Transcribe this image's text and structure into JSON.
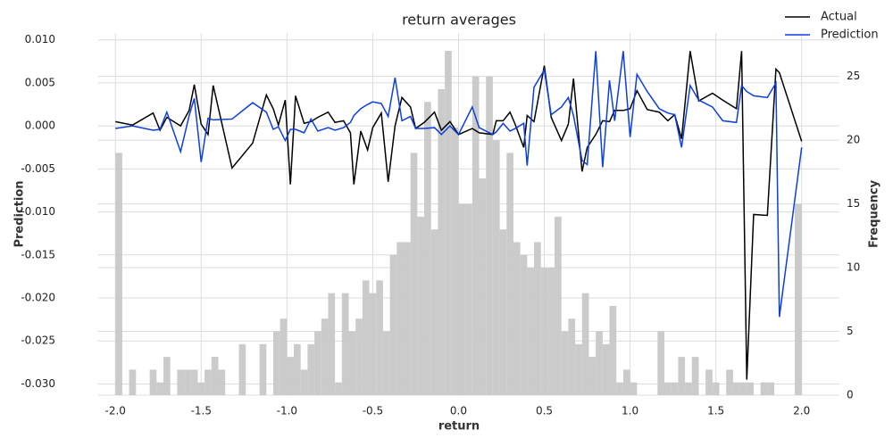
{
  "chart_data": {
    "type": "line",
    "title": "return averages",
    "xlabel": "return",
    "ylabel": "Prediction",
    "y2label": "Frequency",
    "x": [
      -2.0,
      -1.9,
      -1.78,
      -1.74,
      -1.7,
      -1.62,
      -1.57,
      -1.54,
      -1.5,
      -1.46,
      -1.43,
      -1.32,
      -1.2,
      -1.12,
      -1.08,
      -1.05,
      -1.01,
      -0.98,
      -0.95,
      -0.9,
      -0.86,
      -0.82,
      -0.76,
      -0.72,
      -0.67,
      -0.63,
      -0.61,
      -0.57,
      -0.53,
      -0.5,
      -0.45,
      -0.41,
      -0.37,
      -0.33,
      -0.28,
      -0.25,
      -0.2,
      -0.14,
      -0.1,
      -0.05,
      0.0,
      0.08,
      0.12,
      0.2,
      0.22,
      0.26,
      0.3,
      0.33,
      0.38,
      0.4,
      0.44,
      0.5,
      0.54,
      0.6,
      0.64,
      0.67,
      0.72,
      0.75,
      0.8,
      0.84,
      0.88,
      0.91,
      0.96,
      1.0,
      1.04,
      1.1,
      1.17,
      1.22,
      1.26,
      1.3,
      1.35,
      1.4,
      1.48,
      1.54,
      1.62,
      1.65,
      1.68,
      1.72,
      1.8,
      1.85,
      1.87,
      2.0
    ],
    "series": [
      {
        "name": "Actual",
        "color": "#000000",
        "values": [
          0.0005,
          0.0001,
          0.0015,
          -0.0005,
          0.001,
          0.0,
          0.0018,
          0.0048,
          0.0002,
          -0.001,
          0.0047,
          -0.0049,
          -0.002,
          0.0036,
          0.002,
          0.0001,
          0.003,
          -0.0068,
          0.0035,
          0.0003,
          0.0005,
          0.001,
          0.0016,
          0.0004,
          0.0006,
          -0.0008,
          -0.0068,
          -0.0006,
          -0.0028,
          -0.0002,
          0.0015,
          -0.0065,
          0.0,
          0.0033,
          0.0022,
          -0.0003,
          0.0004,
          0.0016,
          -0.0005,
          0.0005,
          -0.001,
          -0.0003,
          -0.0008,
          -0.001,
          0.0006,
          0.0006,
          0.0016,
          0.0002,
          -0.0025,
          0.0012,
          0.0005,
          0.007,
          0.001,
          -0.0017,
          0.0002,
          0.0055,
          -0.0053,
          -0.0025,
          -0.001,
          0.0006,
          0.0005,
          0.0018,
          0.0018,
          0.002,
          0.0041,
          0.0019,
          0.0016,
          0.0006,
          0.0013,
          -0.0015,
          0.0087,
          0.0029,
          0.0038,
          0.003,
          0.002,
          0.0087,
          -0.0295,
          -0.0103,
          -0.0104,
          0.0066,
          0.0062,
          -0.0018
        ]
      },
      {
        "name": "Prediction",
        "color": "#0b3fe0",
        "values": [
          -0.0003,
          0.0,
          -0.0005,
          -0.0004,
          0.0016,
          -0.003,
          0.0012,
          0.0032,
          -0.0042,
          0.0009,
          0.0007,
          0.0008,
          0.0027,
          0.0016,
          -0.0004,
          -0.0001,
          -0.0017,
          -0.0004,
          -0.0004,
          -0.0008,
          0.0008,
          -0.0006,
          -0.0002,
          -0.0005,
          -0.0002,
          0.0004,
          0.0012,
          0.002,
          0.0025,
          0.0028,
          0.0026,
          0.0011,
          0.0056,
          0.0006,
          0.0011,
          -0.0003,
          -0.0003,
          -0.0002,
          -0.001,
          0.0,
          -0.001,
          0.0022,
          -0.0002,
          -0.001,
          -0.0007,
          0.0003,
          -0.0006,
          -0.0003,
          0.0003,
          -0.0046,
          0.0045,
          0.0065,
          0.0013,
          0.0022,
          0.0033,
          0.0012,
          -0.004,
          -0.0045,
          0.0087,
          -0.0048,
          0.0053,
          0.0006,
          0.0087,
          -0.0013,
          0.006,
          0.004,
          0.002,
          0.0015,
          0.0013,
          -0.0025,
          0.0047,
          0.003,
          0.0022,
          0.0006,
          0.0004,
          0.0047,
          0.004,
          0.0035,
          0.0033,
          0.005,
          -0.0222,
          -0.0025
        ]
      }
    ],
    "histogram": {
      "color": "#c8c8c8",
      "axis": "y2",
      "bins": [
        -2,
        -1.96,
        -1.92,
        -1.88,
        -1.84,
        -1.8,
        -1.76,
        -1.72,
        -1.68,
        -1.64,
        -1.6,
        -1.56,
        -1.52,
        -1.48,
        -1.44,
        -1.4,
        -1.36,
        -1.32,
        -1.28,
        -1.24,
        -1.2,
        -1.16,
        -1.12,
        -1.08,
        -1.04,
        -1,
        -0.96,
        -0.92,
        -0.88,
        -0.84,
        -0.8,
        -0.76,
        -0.72,
        -0.68,
        -0.64,
        -0.6,
        -0.56,
        -0.52,
        -0.48,
        -0.44,
        -0.4,
        -0.36,
        -0.32,
        -0.28,
        -0.24,
        -0.2,
        -0.16,
        -0.12,
        -0.08,
        -0.04,
        0,
        0.04,
        0.08,
        0.12,
        0.16,
        0.2,
        0.24,
        0.28,
        0.32,
        0.36,
        0.4,
        0.44,
        0.48,
        0.52,
        0.56,
        0.6,
        0.64,
        0.68,
        0.72,
        0.76,
        0.8,
        0.84,
        0.88,
        0.92,
        0.96,
        1,
        1.04,
        1.08,
        1.12,
        1.16,
        1.2,
        1.24,
        1.28,
        1.32,
        1.36,
        1.4,
        1.44,
        1.48,
        1.52,
        1.56,
        1.6,
        1.64,
        1.68,
        1.72,
        1.76,
        1.8,
        1.84,
        1.88,
        1.92,
        1.96,
        2
      ],
      "counts": [
        19,
        0,
        2,
        0,
        0,
        2,
        1,
        3,
        0,
        2,
        2,
        2,
        1,
        2,
        3,
        2,
        0,
        0,
        4,
        0,
        0,
        4,
        0,
        5,
        6,
        3,
        4,
        2,
        4,
        5,
        6,
        8,
        1,
        8,
        5,
        6,
        9,
        8,
        9,
        5,
        11,
        12,
        12,
        19,
        14,
        23,
        13,
        24,
        27,
        21,
        15,
        15,
        25,
        17,
        25,
        20,
        13,
        19,
        12,
        11,
        10,
        12,
        10,
        10,
        14,
        5,
        6,
        4,
        8,
        3,
        5,
        4,
        7,
        1,
        2,
        1,
        0,
        0,
        0,
        5,
        1,
        1,
        3,
        1,
        3,
        0,
        2,
        1,
        0,
        2,
        1,
        1,
        1,
        0,
        1,
        1,
        0,
        0,
        0,
        15
      ]
    },
    "xlim": [
      -2.1,
      2.22
    ],
    "ylim": [
      -0.0313,
      0.0108
    ],
    "y2lim": [
      0,
      28.4
    ],
    "xticks": [
      {
        "value": -2,
        "label": "-2.0"
      },
      {
        "value": -1.5,
        "label": "-1.5"
      },
      {
        "value": -1,
        "label": "-1.0"
      },
      {
        "value": -0.5,
        "label": "-0.5"
      },
      {
        "value": 0,
        "label": "0.0"
      },
      {
        "value": 0.5,
        "label": "0.5"
      },
      {
        "value": 1,
        "label": "1.0"
      },
      {
        "value": 1.5,
        "label": "1.5"
      },
      {
        "value": 2,
        "label": "2.0"
      }
    ],
    "yticks": [
      {
        "value": 0.01,
        "label": "0.010"
      },
      {
        "value": 0.005,
        "label": "0.005"
      },
      {
        "value": 0,
        "label": "0.000"
      },
      {
        "value": -0.005,
        "label": "-0.005"
      },
      {
        "value": -0.01,
        "label": "-0.010"
      },
      {
        "value": -0.015,
        "label": "-0.015"
      },
      {
        "value": -0.02,
        "label": "-0.020"
      },
      {
        "value": -0.025,
        "label": "-0.025"
      },
      {
        "value": -0.03,
        "label": "-0.030"
      }
    ],
    "y2ticks": [
      0,
      5,
      10,
      15,
      20,
      25
    ],
    "grid": true,
    "legend": "upper right"
  }
}
